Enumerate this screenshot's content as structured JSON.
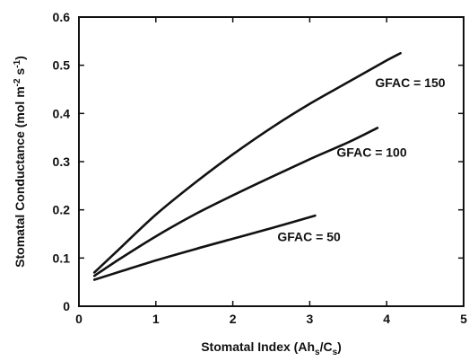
{
  "chart_data": {
    "type": "line",
    "title": "",
    "xlabel": {
      "prefix": "Stomatal Index (Ah",
      "sub1": "s",
      "mid": "/C",
      "sub2": "s",
      "suffix": ")"
    },
    "ylabel": {
      "prefix": "Stomatal Conductance (mol m",
      "sup1": "-2",
      "mid": " s",
      "sup2": "-1",
      "suffix": ")"
    },
    "xlim": [
      0,
      5
    ],
    "ylim": [
      0,
      0.6
    ],
    "xticks": [
      0,
      1,
      2,
      3,
      4,
      5
    ],
    "xtick_labels": [
      "0",
      "1",
      "2",
      "3",
      "4",
      "5"
    ],
    "yticks": [
      0,
      0.1,
      0.2,
      0.3,
      0.4,
      0.5,
      0.6
    ],
    "ytick_labels": [
      "0",
      "0.1",
      "0.2",
      "0.3",
      "0.4",
      "0.5",
      "0.6"
    ],
    "grid": false,
    "series": [
      {
        "name": "GFAC = 150",
        "x": [
          0.2,
          0.5,
          1.0,
          1.5,
          2.0,
          2.5,
          3.0,
          3.5,
          4.0,
          4.18
        ],
        "y": [
          0.07,
          0.115,
          0.19,
          0.255,
          0.315,
          0.37,
          0.42,
          0.465,
          0.51,
          0.525
        ]
      },
      {
        "name": "GFAC = 100",
        "x": [
          0.2,
          0.5,
          1.0,
          1.5,
          2.0,
          2.5,
          3.0,
          3.5,
          3.88
        ],
        "y": [
          0.063,
          0.095,
          0.145,
          0.19,
          0.23,
          0.268,
          0.305,
          0.34,
          0.37
        ]
      },
      {
        "name": "GFAC = 50",
        "x": [
          0.2,
          0.5,
          1.0,
          1.5,
          2.0,
          2.5,
          3.07
        ],
        "y": [
          0.055,
          0.07,
          0.095,
          0.118,
          0.14,
          0.162,
          0.188
        ]
      }
    ],
    "annotations": [
      {
        "text": "GFAC = 150",
        "x": 3.85,
        "y": 0.455
      },
      {
        "text": "GFAC = 100",
        "x": 3.35,
        "y": 0.31
      },
      {
        "text": "GFAC = 50",
        "x": 2.58,
        "y": 0.135
      }
    ]
  }
}
